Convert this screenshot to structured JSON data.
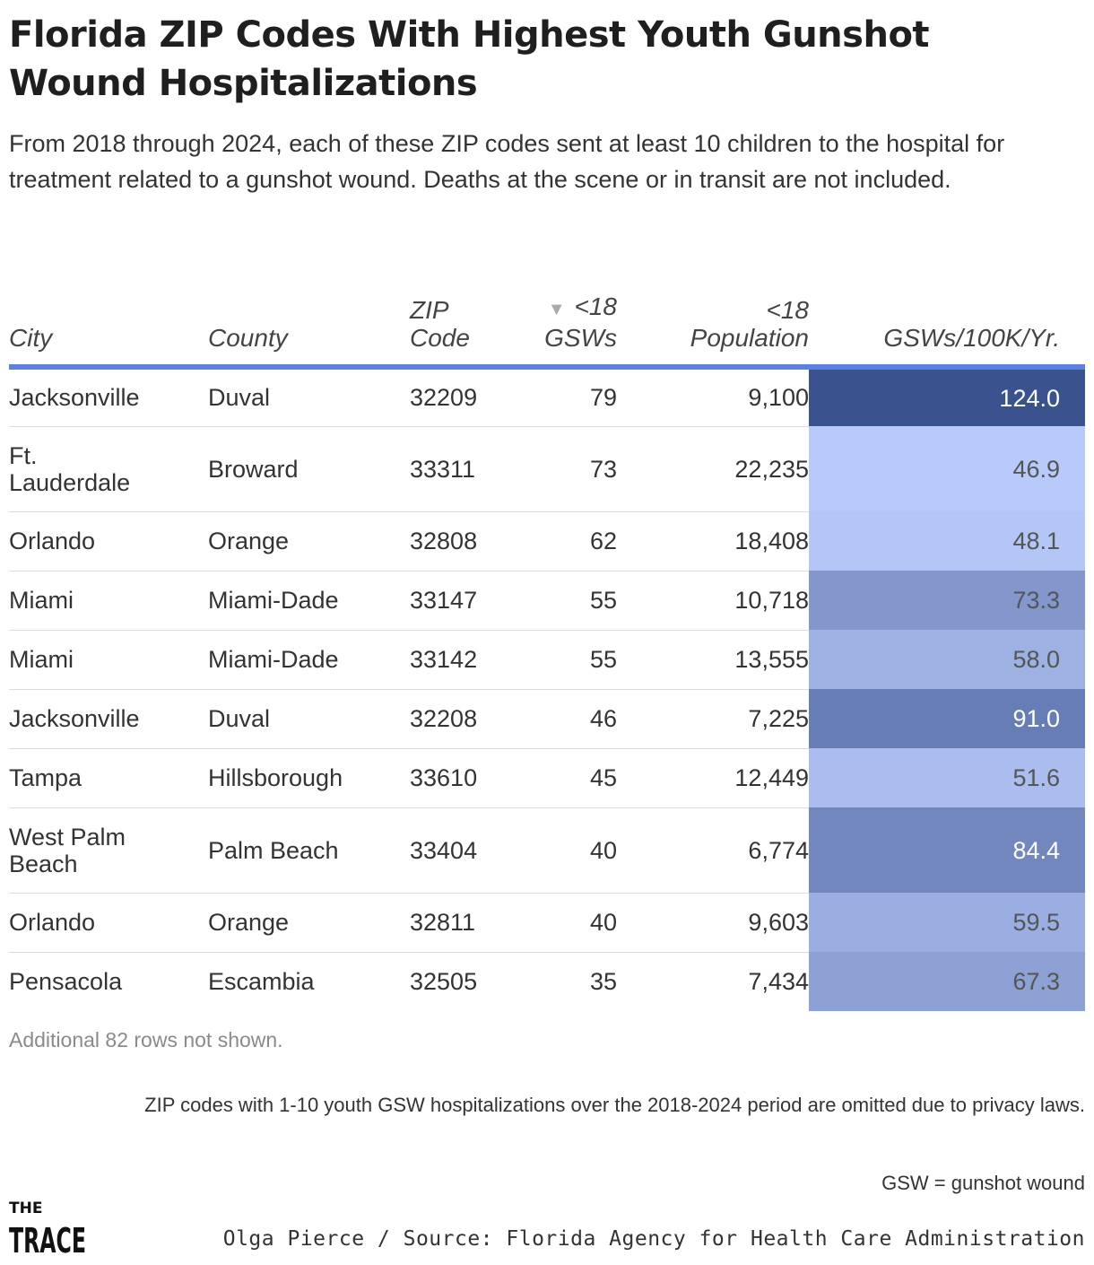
{
  "title": "Florida ZIP Codes With Highest Youth Gunshot Wound Hospitalizations",
  "subtitle": "From 2018 through 2024, each of these ZIP codes sent at least 10 children to the hospital for treatment related to a gunshot wound. Deaths at the scene or in transit are not included.",
  "columns": {
    "city": "City",
    "county": "County",
    "zip": "ZIP Code",
    "gsws": "<18 GSWs",
    "population": "<18 Population",
    "rate": "GSWs/100K/Yr."
  },
  "sort_indicator": "▼",
  "colors": {
    "header_rule": "#5b82e0",
    "rate_low": "#b8cafa",
    "rate_high": "#3a528e"
  },
  "chart_data": {
    "type": "table",
    "sorted_by": "<18 GSWs",
    "sort_order": "descending",
    "rows": [
      {
        "city": "Jacksonville",
        "county": "Duval",
        "zip": "32209",
        "gsws": "79",
        "population": "9,100",
        "rate": "124.0"
      },
      {
        "city": "Ft. Lauderdale",
        "county": "Broward",
        "zip": "33311",
        "gsws": "73",
        "population": "22,235",
        "rate": "46.9"
      },
      {
        "city": "Orlando",
        "county": "Orange",
        "zip": "32808",
        "gsws": "62",
        "population": "18,408",
        "rate": "48.1"
      },
      {
        "city": "Miami",
        "county": "Miami-Dade",
        "zip": "33147",
        "gsws": "55",
        "population": "10,718",
        "rate": "73.3"
      },
      {
        "city": "Miami",
        "county": "Miami-Dade",
        "zip": "33142",
        "gsws": "55",
        "population": "13,555",
        "rate": "58.0"
      },
      {
        "city": "Jacksonville",
        "county": "Duval",
        "zip": "32208",
        "gsws": "46",
        "population": "7,225",
        "rate": "91.0"
      },
      {
        "city": "Tampa",
        "county": "Hillsborough",
        "zip": "33610",
        "gsws": "45",
        "population": "12,449",
        "rate": "51.6"
      },
      {
        "city": "West Palm Beach",
        "county": "Palm Beach",
        "zip": "33404",
        "gsws": "40",
        "population": "6,774",
        "rate": "84.4"
      },
      {
        "city": "Orlando",
        "county": "Orange",
        "zip": "32811",
        "gsws": "40",
        "population": "9,603",
        "rate": "59.5"
      },
      {
        "city": "Pensacola",
        "county": "Escambia",
        "zip": "32505",
        "gsws": "35",
        "population": "7,434",
        "rate": "67.3"
      }
    ]
  },
  "rows_note": "Additional 82 rows not shown.",
  "footnote": "ZIP codes with 1-10 youth GSW hospitalizations over the 2018-2024 period are omitted due to privacy laws.",
  "gsw_note": "GSW = gunshot wound",
  "logo": {
    "line1": "THE",
    "line2": "TRACE"
  },
  "credit": "Olga Pierce / Source: Florida Agency for Health Care Administration"
}
